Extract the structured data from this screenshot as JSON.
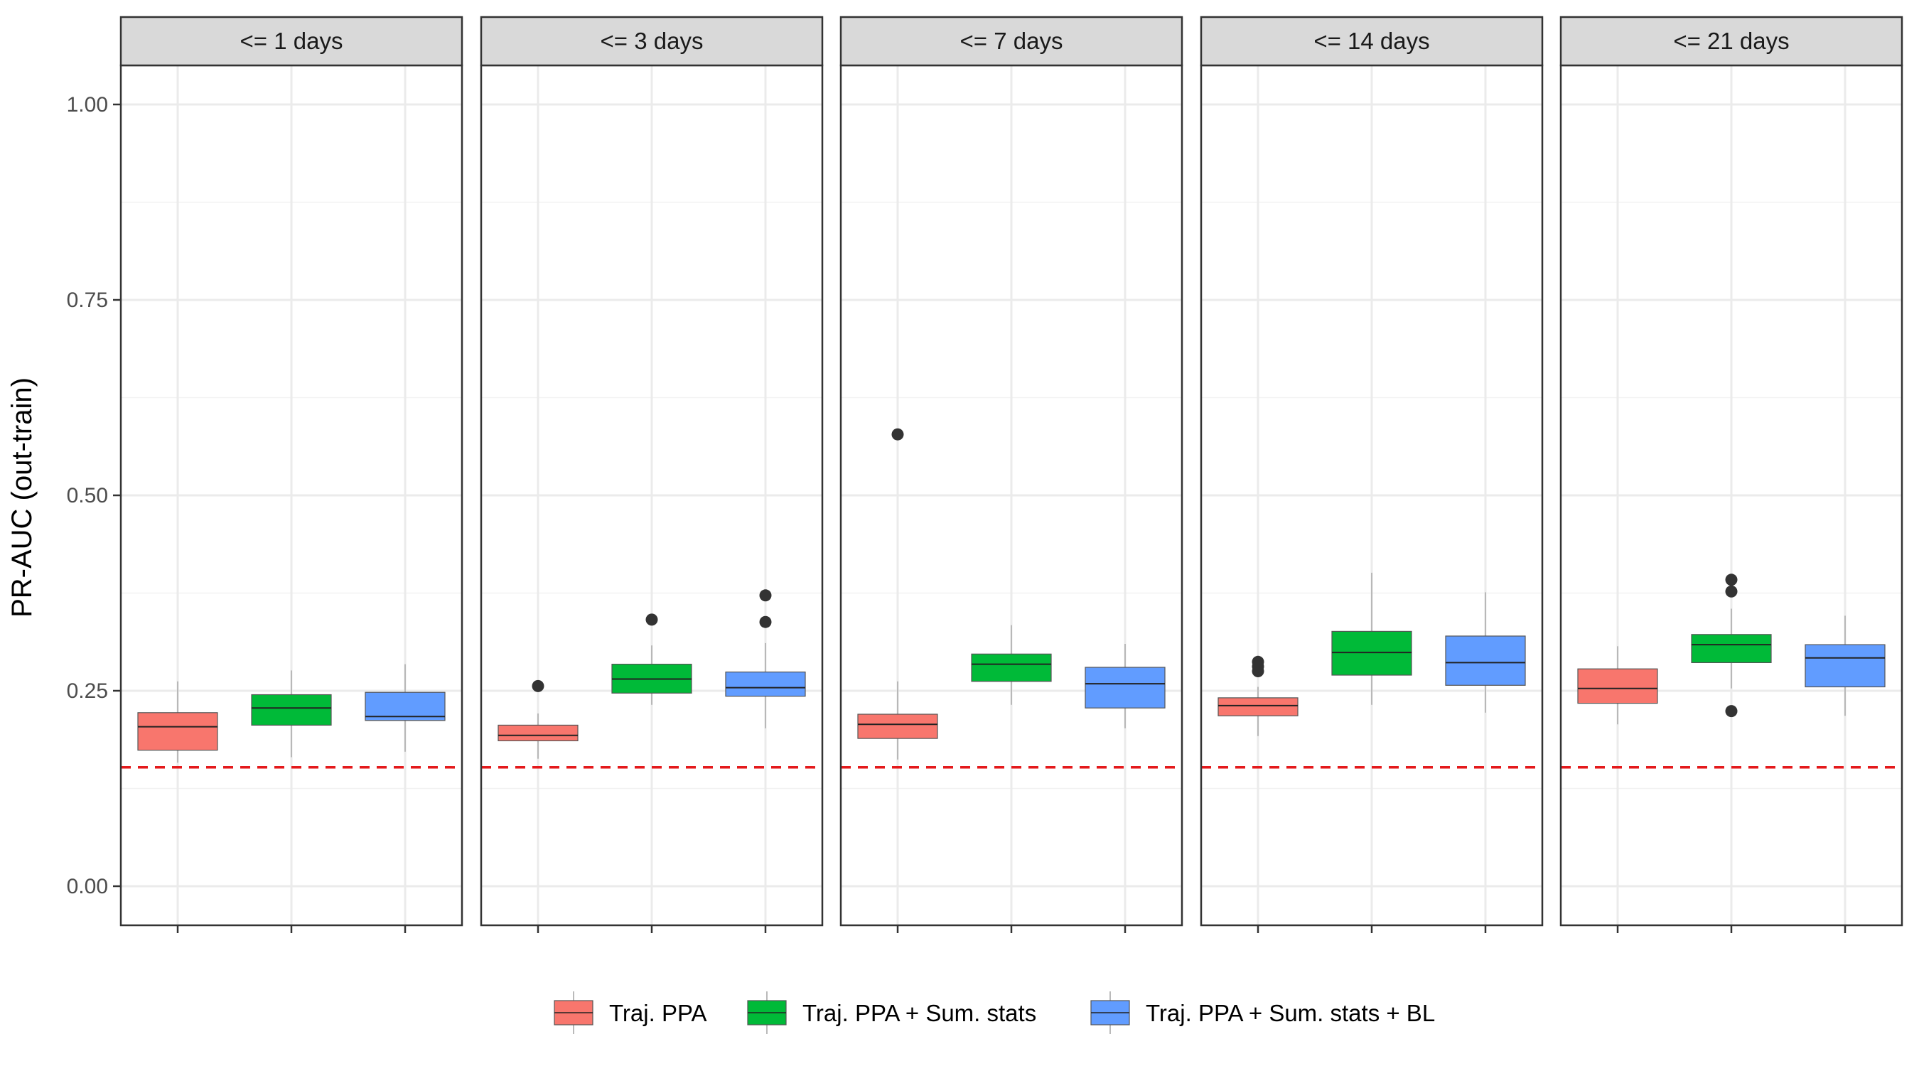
{
  "chart_data": {
    "type": "box",
    "ylabel": "PR-AUC (out-train)",
    "ylim": [
      -0.05,
      1.05
    ],
    "yticks": [
      0.0,
      0.25,
      0.5,
      0.75,
      1.0
    ],
    "ytick_labels": [
      "0.00",
      "0.25",
      "0.50",
      "0.75",
      "1.00"
    ],
    "reference_line": {
      "y": 0.152,
      "color": "#e41a1c",
      "style": "dashed"
    },
    "grid": true,
    "legend_position": "bottom",
    "series": [
      {
        "name": "Traj. PPA",
        "color": "#F8766D"
      },
      {
        "name": "Traj. PPA + Sum. stats",
        "color": "#00BA38"
      },
      {
        "name": "Traj. PPA + Sum. stats + BL",
        "color": "#619CFF"
      }
    ],
    "facets": [
      {
        "label": "<= 1 days",
        "boxes": [
          {
            "min": 0.158,
            "q1": 0.174,
            "median": 0.204,
            "q3": 0.222,
            "max": 0.262,
            "outliers": []
          },
          {
            "min": 0.165,
            "q1": 0.206,
            "median": 0.228,
            "q3": 0.245,
            "max": 0.276,
            "outliers": []
          },
          {
            "min": 0.172,
            "q1": 0.212,
            "median": 0.217,
            "q3": 0.248,
            "max": 0.284,
            "outliers": []
          }
        ]
      },
      {
        "label": "<= 3 days",
        "boxes": [
          {
            "min": 0.163,
            "q1": 0.186,
            "median": 0.193,
            "q3": 0.206,
            "max": 0.221,
            "outliers": [
              0.256
            ]
          },
          {
            "min": 0.232,
            "q1": 0.247,
            "median": 0.265,
            "q3": 0.284,
            "max": 0.308,
            "outliers": [
              0.341
            ]
          },
          {
            "min": 0.202,
            "q1": 0.243,
            "median": 0.254,
            "q3": 0.274,
            "max": 0.311,
            "outliers": [
              0.338,
              0.372
            ]
          }
        ]
      },
      {
        "label": "<= 7 days",
        "boxes": [
          {
            "min": 0.162,
            "q1": 0.189,
            "median": 0.207,
            "q3": 0.22,
            "max": 0.262,
            "outliers": [
              0.578
            ]
          },
          {
            "min": 0.232,
            "q1": 0.262,
            "median": 0.284,
            "q3": 0.297,
            "max": 0.334,
            "outliers": []
          },
          {
            "min": 0.202,
            "q1": 0.228,
            "median": 0.259,
            "q3": 0.28,
            "max": 0.31,
            "outliers": []
          }
        ]
      },
      {
        "label": "<= 14 days",
        "boxes": [
          {
            "min": 0.192,
            "q1": 0.218,
            "median": 0.231,
            "q3": 0.241,
            "max": 0.255,
            "outliers": [
              0.275,
              0.281,
              0.287
            ]
          },
          {
            "min": 0.232,
            "q1": 0.27,
            "median": 0.299,
            "q3": 0.326,
            "max": 0.401,
            "outliers": []
          },
          {
            "min": 0.222,
            "q1": 0.257,
            "median": 0.286,
            "q3": 0.32,
            "max": 0.376,
            "outliers": []
          }
        ]
      },
      {
        "label": "<= 21 days",
        "boxes": [
          {
            "min": 0.207,
            "q1": 0.234,
            "median": 0.253,
            "q3": 0.278,
            "max": 0.307,
            "outliers": []
          },
          {
            "min": 0.253,
            "q1": 0.286,
            "median": 0.309,
            "q3": 0.322,
            "max": 0.355,
            "outliers": [
              0.224,
              0.377,
              0.392
            ]
          },
          {
            "min": 0.218,
            "q1": 0.255,
            "median": 0.292,
            "q3": 0.309,
            "max": 0.346,
            "outliers": []
          }
        ]
      }
    ]
  }
}
